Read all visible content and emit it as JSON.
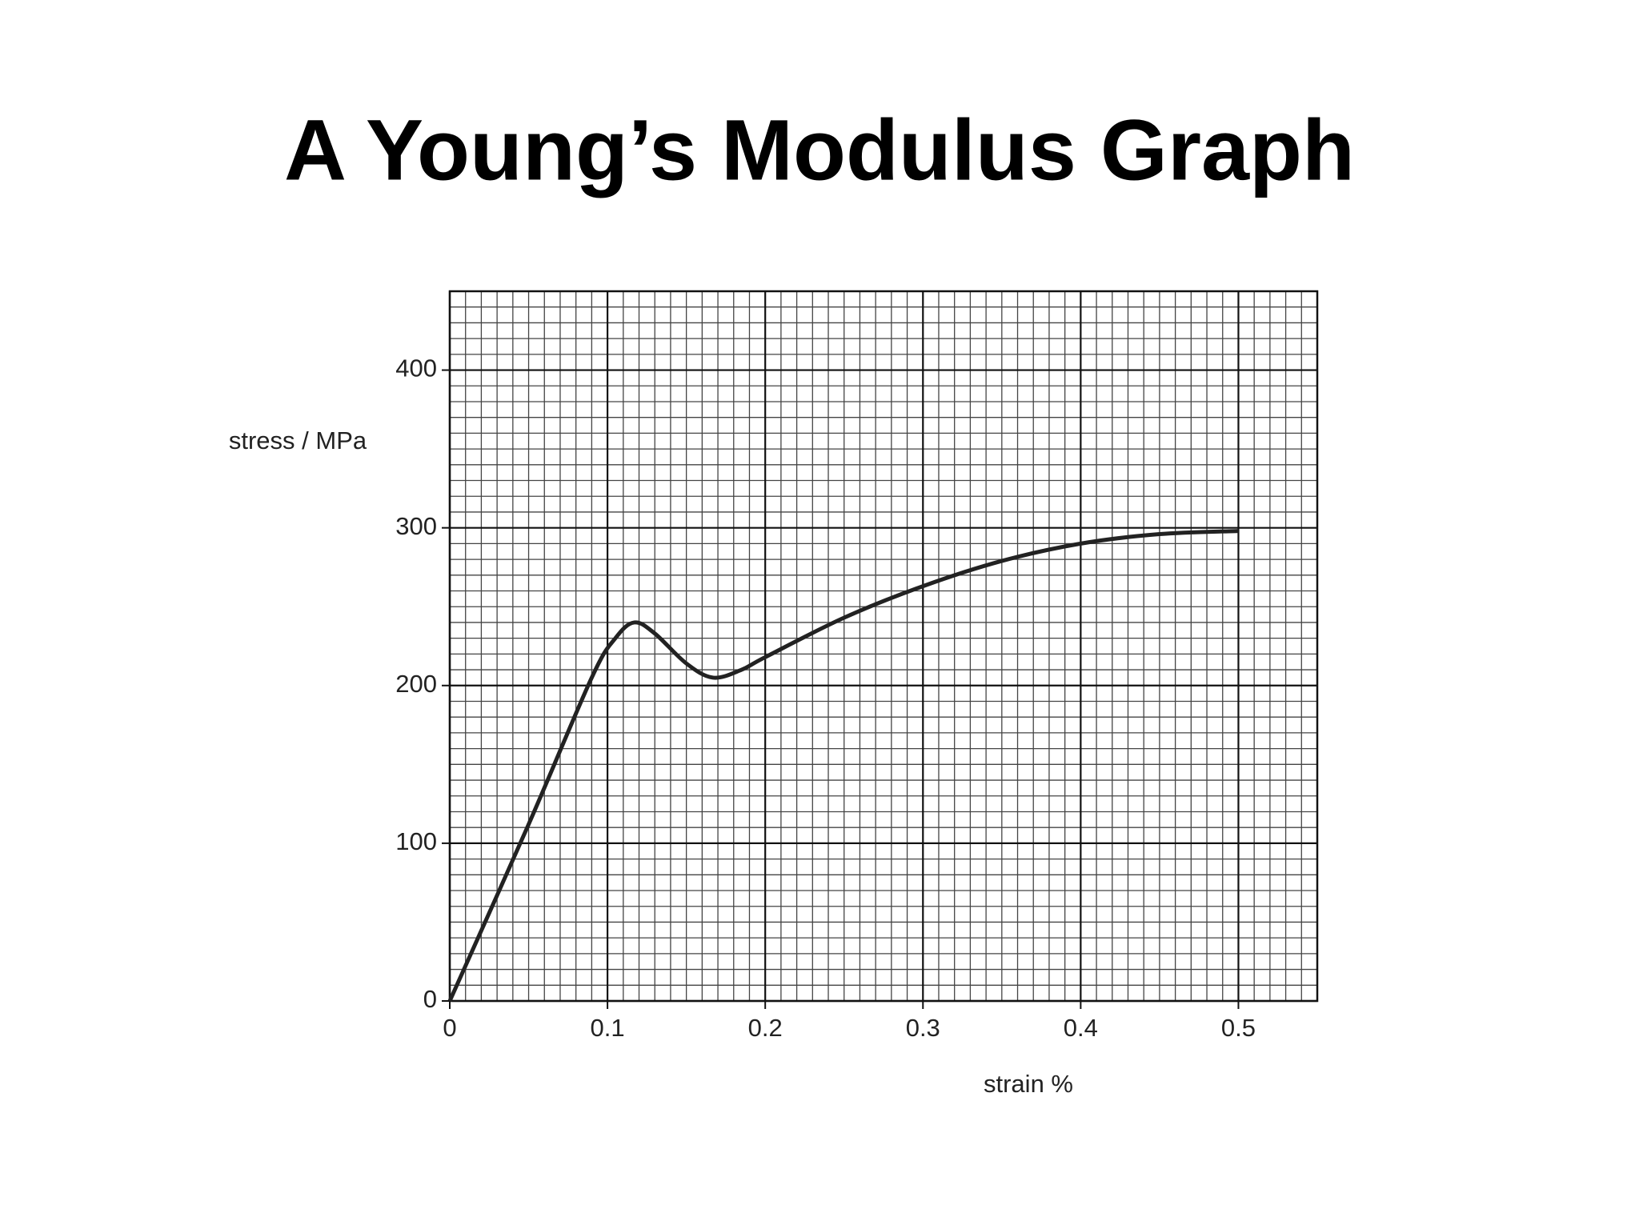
{
  "chart_data": {
    "type": "line",
    "title": "A Young’s Modulus Graph",
    "x_label": "strain %",
    "y_label": "stress / MPa",
    "x": [
      0,
      0.05,
      0.09,
      0.105,
      0.117,
      0.13,
      0.15,
      0.167,
      0.185,
      0.2,
      0.25,
      0.3,
      0.35,
      0.4,
      0.45,
      0.5
    ],
    "series": [
      {
        "color": "#222222",
        "values": [
          0,
          112,
          205,
          230,
          240,
          233,
          214,
          205,
          210,
          218,
          243,
          263,
          279,
          290,
          296,
          298
        ]
      }
    ],
    "xlim": [
      0,
      0.55
    ],
    "ylim": [
      0,
      450
    ],
    "xticks": [
      0,
      0.1,
      0.2,
      0.3,
      0.4,
      0.5
    ],
    "yticks": [
      0,
      100,
      200,
      300,
      400
    ],
    "grid": true,
    "minor_grid": true
  }
}
